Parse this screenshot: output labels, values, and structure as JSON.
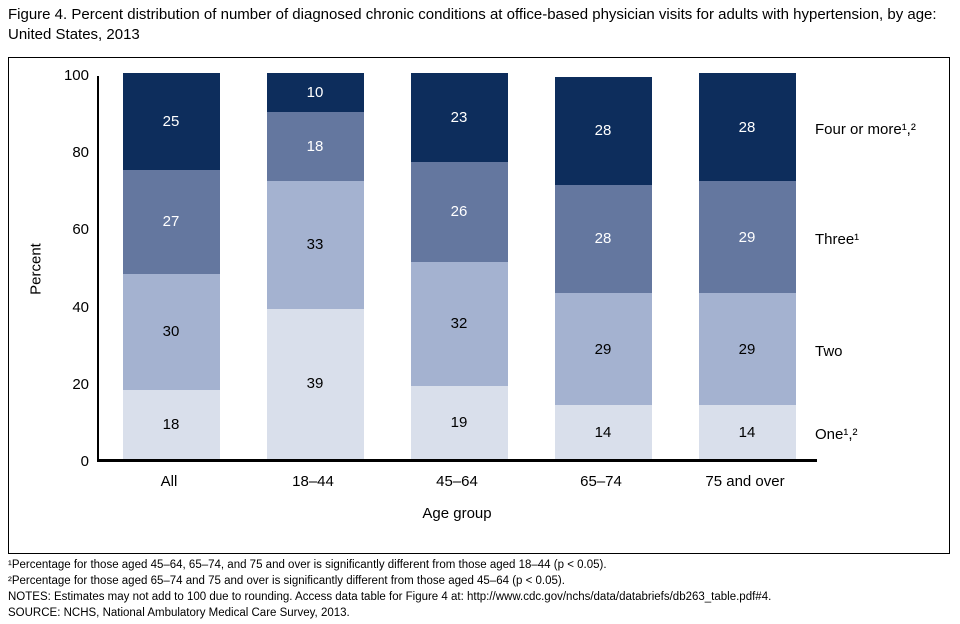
{
  "figure": {
    "title": "Figure 4. Percent distribution of number of diagnosed chronic conditions at office-based physician visits for adults with hypertension, by age: United States, 2013"
  },
  "chart_data": {
    "type": "bar",
    "stacked": true,
    "percent_stacked": true,
    "title": "Figure 4. Percent distribution of number of diagnosed chronic conditions at office-based physician visits for adults with hypertension, by age: United States, 2013",
    "categories": [
      "All",
      "18–44",
      "45–64",
      "65–74",
      "75 and over"
    ],
    "series": [
      {
        "name": "One¹,²",
        "values": [
          18,
          39,
          19,
          14,
          14
        ],
        "color": "#d9dfeb",
        "label_color": "#000000"
      },
      {
        "name": "Two",
        "values": [
          30,
          33,
          32,
          29,
          29
        ],
        "color": "#a4b2d0",
        "label_color": "#000000"
      },
      {
        "name": "Three¹",
        "values": [
          27,
          18,
          26,
          28,
          29
        ],
        "color": "#64779f",
        "label_color": "#ffffff"
      },
      {
        "name": "Four or more¹,²",
        "values": [
          25,
          10,
          23,
          28,
          28
        ],
        "color": "#0d2d5c",
        "label_color": "#ffffff"
      }
    ],
    "xlabel": "Age group",
    "ylabel": "Percent",
    "ylim": [
      0,
      100
    ],
    "yticks": [
      0,
      20,
      40,
      60,
      80,
      100
    ],
    "grid": false,
    "legend_position": "right"
  },
  "footnotes": [
    "¹Percentage for those aged 45–64, 65–74, and 75 and over is significantly different from those aged 18–44 (p < 0.05).",
    "²Percentage for those aged 65–74 and 75 and over is significantly different from those aged 45–64 (p < 0.05).",
    "NOTES: Estimates may not add to 100 due to rounding. Access data table for Figure 4 at: http://www.cdc.gov/nchs/data/databriefs/db263_table.pdf#4.",
    "SOURCE: NCHS, National Ambulatory Medical Care Survey, 2013."
  ]
}
